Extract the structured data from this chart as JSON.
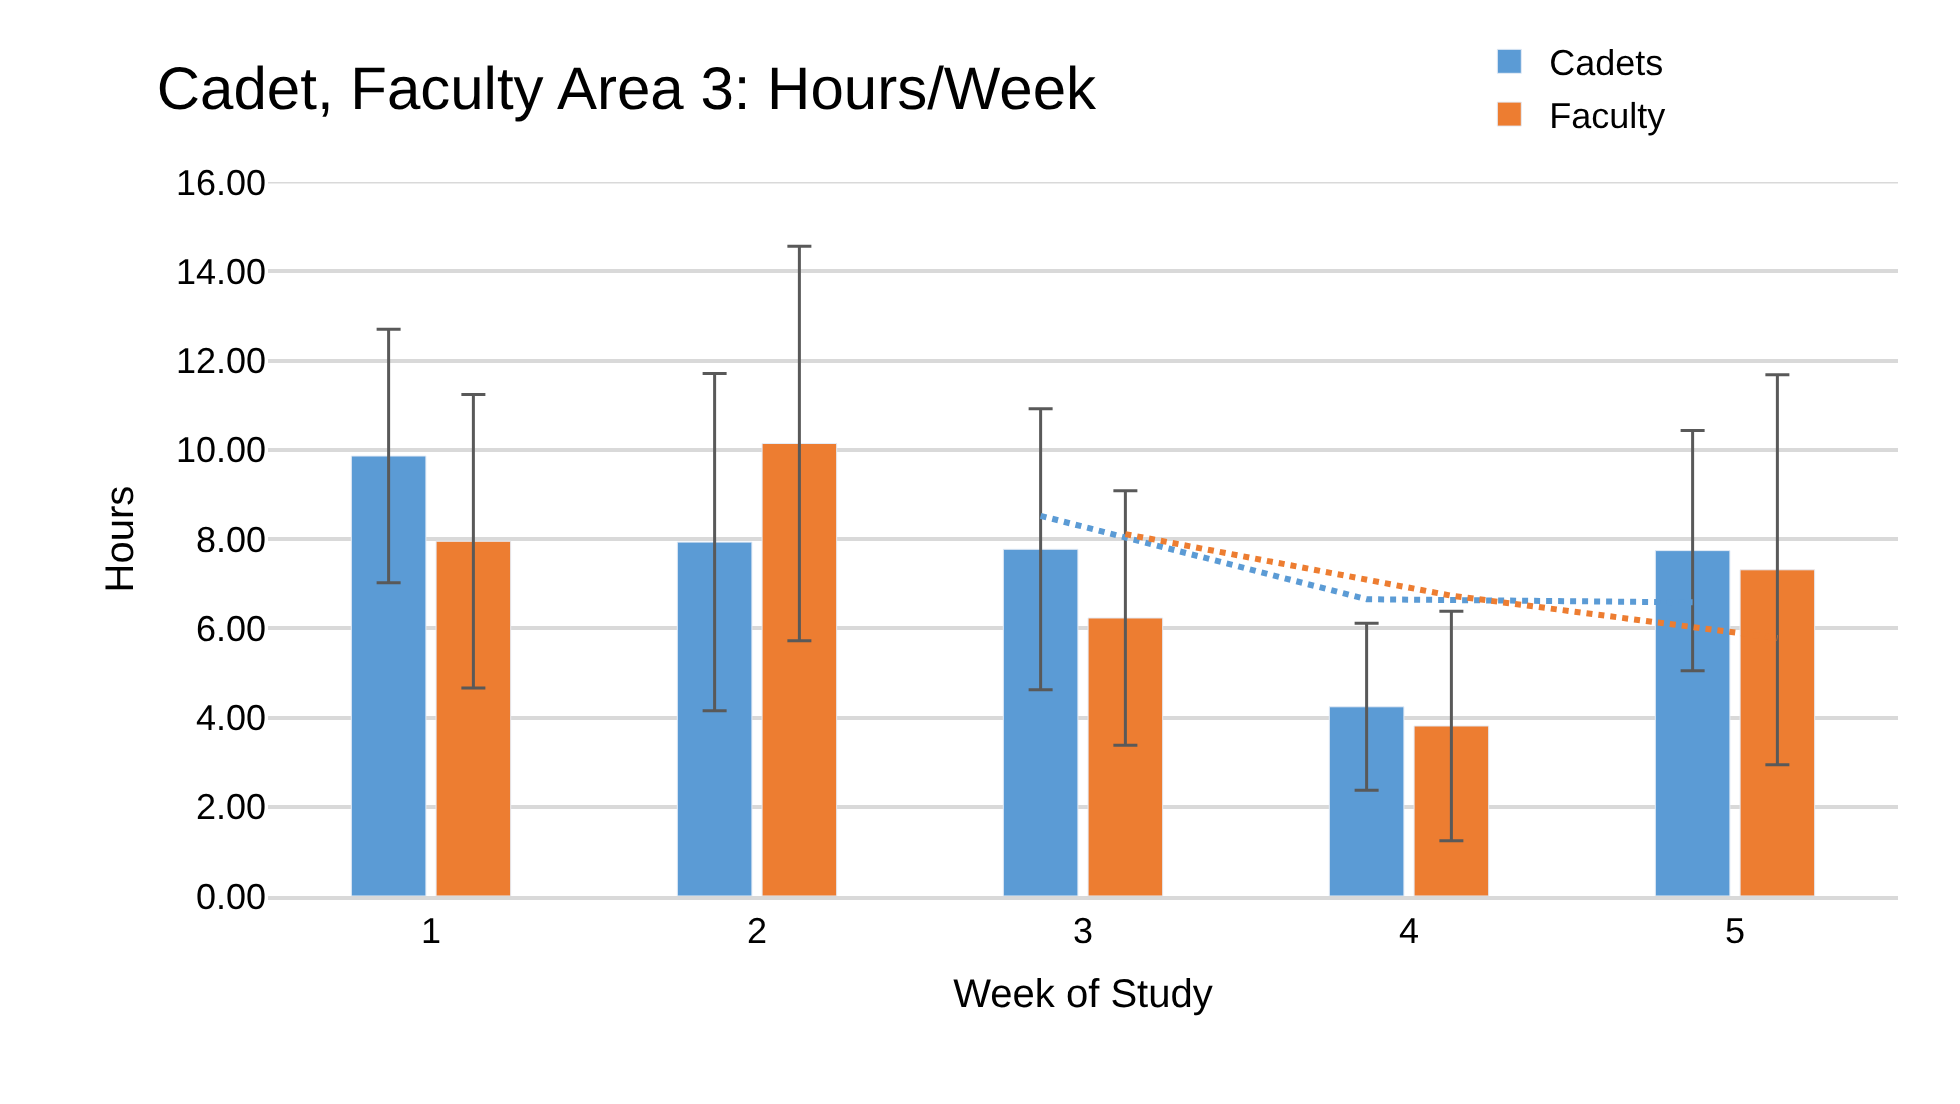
{
  "chart_data": {
    "type": "bar",
    "title": "Cadet, Faculty Area 3: Hours/Week",
    "xlabel": "Week of Study",
    "ylabel": "Hours",
    "categories": [
      "1",
      "2",
      "3",
      "4",
      "5"
    ],
    "series": [
      {
        "name": "Cadets",
        "color": "#5b9bd5",
        "values": [
          9.86,
          7.93,
          7.77,
          4.24,
          7.74
        ],
        "errors": [
          2.84,
          3.78,
          3.15,
          1.87,
          2.69
        ]
      },
      {
        "name": "Faculty",
        "color": "#ed7d31",
        "values": [
          7.95,
          10.14,
          6.23,
          3.81,
          7.31
        ],
        "errors": [
          3.29,
          4.42,
          2.85,
          2.57,
          4.37
        ]
      },
      {
        "type": "line",
        "color": "#5b9bd5",
        "line_style": "dotted",
        "x": [
          "3",
          "4",
          "5"
        ],
        "values": [
          8.52,
          6.65,
          6.58
        ]
      },
      {
        "type": "line",
        "color": "#ed7d31",
        "line_style": "dotted",
        "x": [
          "3",
          "4",
          "5"
        ],
        "values": [
          8.11,
          6.73,
          5.78
        ]
      }
    ],
    "ylim": [
      0,
      16
    ],
    "yticks": [
      {
        "value": 0,
        "label": "0.00"
      },
      {
        "value": 2,
        "label": "2.00"
      },
      {
        "value": 4,
        "label": "4.00"
      },
      {
        "value": 6,
        "label": "6.00"
      },
      {
        "value": 8,
        "label": "8.00"
      },
      {
        "value": 10,
        "label": "10.00"
      },
      {
        "value": 12,
        "label": "12.00"
      },
      {
        "value": 14,
        "label": "14.00"
      },
      {
        "value": 16,
        "label": "16.00"
      }
    ],
    "grid": "y",
    "legend": "top right"
  }
}
